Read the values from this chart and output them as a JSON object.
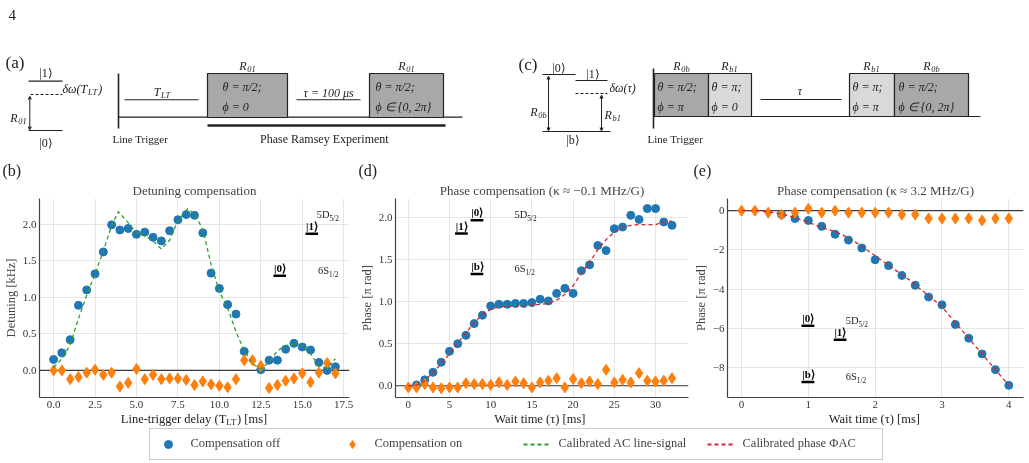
{
  "chart_data": [
    {
      "type": "other",
      "annotations": [
        "4",
        "(a)",
        "|1⟩",
        "δω(T$_{LT}$)",
        "R$_{01}$",
        "|0⟩",
        "T$_{LT}$",
        "Line Trigger",
        "R$_{01}$",
        "θ = π/2;",
        "ϕ = 0",
        "τ = 100 μs",
        "R$_{01}$",
        "θ = π/2;",
        "ϕ ∈ {0, 2π}",
        "Phase Ramsey Experiment",
        "(c)",
        "|0⟩",
        "|1⟩",
        "δω(τ)",
        "R$_{0b}$",
        "R$_{b1}$",
        "|b⟩",
        "R$_{0b}$",
        "R$_{b1}$",
        "θ = π/2;",
        "ϕ = π",
        "θ = π;",
        "ϕ = 0",
        "τ",
        "R$_{b1}$",
        "R$_{0b}$",
        "θ = π;",
        "ϕ = π",
        "θ = π/2;",
        "ϕ ∈ {0, 2π}",
        "Line Trigger"
      ]
    },
    {
      "type": "scatter",
      "title": "Detuning compensation",
      "xlabel": "Line-trigger delay (T$_{LT}$) [ms]",
      "ylabel": "Detuning [kHz]",
      "annotations": [
        "(b)",
        "5D$_{5/2}$",
        "|1⟩",
        "|0⟩",
        "6S$_{1/2}$"
      ],
      "xlim": [
        -0.85,
        17.85
      ],
      "ylim": [
        -0.37,
        2.35
      ],
      "xticks": [
        {
          "value": 0,
          "label": "0.0"
        },
        2.5,
        {
          "value": 5,
          "label": "5.0"
        },
        7.5,
        {
          "value": 10,
          "label": "10.0"
        },
        12.5,
        {
          "value": 15,
          "label": "15.0"
        },
        17.5
      ],
      "yticks": [
        {
          "value": 0,
          "label": "0.0"
        },
        0.5,
        {
          "value": 1,
          "label": "1.0"
        },
        1.5,
        {
          "value": 2,
          "label": "2.0"
        }
      ],
      "grid": true,
      "legend": "bottom",
      "ref_lines": [
        {
          "axis": "y",
          "value": 0,
          "color": "#3a3a3a"
        }
      ],
      "x": [
        0,
        0.5,
        1,
        1.5,
        2,
        2.5,
        3,
        3.5,
        4,
        4.5,
        5,
        5.5,
        6,
        6.5,
        7,
        7.5,
        8,
        8.5,
        9,
        9.5,
        10,
        10.5,
        11,
        11.5,
        12,
        12.5,
        13,
        13.5,
        14,
        14.5,
        15,
        15.5,
        16,
        16.5,
        17
      ],
      "series": [
        {
          "name": "Compensation off",
          "color": "#1f77b4",
          "marker": "circle",
          "values": [
            0.15,
            0.24,
            0.42,
            0.89,
            1.1,
            1.32,
            1.62,
            1.99,
            1.92,
            1.94,
            1.86,
            1.89,
            1.82,
            1.77,
            1.91,
            2.06,
            2.13,
            2.12,
            1.88,
            1.33,
            1.12,
            0.9,
            0.77,
            0.26,
            null,
            0.01,
            0.14,
            0.14,
            0.29,
            0.37,
            0.32,
            0.28,
            0.11,
            0.0,
            0.05
          ]
        },
        {
          "name": "Compensation on",
          "color": "#ff7f0e",
          "marker": "diamond",
          "values": [
            0.0,
            0.0,
            -0.12,
            -0.09,
            -0.03,
            0.01,
            -0.06,
            -0.03,
            -0.22,
            -0.17,
            0.02,
            -0.12,
            -0.06,
            -0.12,
            -0.11,
            -0.11,
            -0.13,
            -0.2,
            -0.15,
            -0.19,
            -0.21,
            -0.23,
            -0.12,
            0.14,
            0.14,
            0.06,
            -0.24,
            -0.2,
            -0.14,
            -0.11,
            -0.04,
            -0.16,
            -0.03,
            0.1,
            -0.04
          ]
        },
        {
          "name": "Calibrated AC line-signal",
          "type": "line",
          "color": "#2ca02c",
          "line_style": "dashed",
          "x": [
            0,
            0.5,
            1,
            1.5,
            2,
            2.5,
            3,
            3.5,
            3.9,
            4.5,
            5,
            5.5,
            6,
            6.5,
            7,
            7.5,
            8.1,
            8.5,
            9,
            9.5,
            10,
            10.5,
            11,
            11.5,
            12,
            12.5,
            13,
            13.5,
            14,
            14.5,
            15,
            15.5,
            16,
            16.5,
            17
          ],
          "values": [
            0.04,
            0.16,
            0.35,
            0.71,
            1.03,
            1.32,
            1.63,
            1.98,
            2.17,
            2.02,
            1.88,
            1.84,
            1.77,
            1.66,
            1.78,
            2.05,
            2.21,
            2.14,
            1.93,
            1.45,
            1.08,
            0.85,
            0.53,
            0.27,
            0.09,
            0.02,
            0.11,
            0.27,
            0.34,
            0.36,
            0.33,
            0.23,
            0.06,
            0.03,
            0.16
          ]
        }
      ]
    },
    {
      "type": "scatter",
      "title": "Phase compensation (κ ≈ −0.1 MHz/G)",
      "xlabel": "Wait time (τ) [ms]",
      "ylabel": "Phase [π rad]",
      "annotations": [
        "(d)",
        "|0⟩",
        "5D$_{5/2}$",
        "|1⟩",
        "|b⟩",
        "6S$_{1/2}$"
      ],
      "xlim": [
        -1.55,
        34.0
      ],
      "ylim": [
        -0.14,
        2.23
      ],
      "xticks": [
        0,
        5,
        10,
        15,
        20,
        25,
        30
      ],
      "yticks": [
        {
          "value": 0,
          "label": "0.0"
        },
        0.5,
        {
          "value": 1,
          "label": "1.0"
        },
        1.5,
        {
          "value": 2,
          "label": "2.0"
        }
      ],
      "grid": true,
      "legend": "bottom",
      "ref_lines": [
        {
          "axis": "y",
          "value": 0,
          "color": "#3a3a3a"
        }
      ],
      "x": [
        0,
        1,
        2,
        3,
        4,
        5,
        6,
        7,
        8,
        9,
        10,
        11,
        12,
        13,
        14,
        15,
        16,
        17,
        18,
        19,
        20,
        21,
        22,
        23,
        24,
        25,
        26,
        27,
        28,
        29,
        30,
        31,
        32
      ],
      "series": [
        {
          "color": "#1f77b4",
          "marker": "circle",
          "values": [
            null,
            0.01,
            0.07,
            0.16,
            0.28,
            0.41,
            0.5,
            0.6,
            0.74,
            0.84,
            0.95,
            0.97,
            0.97,
            0.98,
            0.98,
            0.99,
            1.03,
            1.01,
            1.1,
            1.16,
            1.1,
            1.37,
            1.44,
            1.67,
            1.61,
            1.87,
            1.89,
            2.03,
            1.98,
            2.11,
            2.11,
            1.95,
            1.91
          ]
        },
        {
          "color": "#ff7f0e",
          "marker": "diamond",
          "values": [
            -0.02,
            -0.02,
            0.02,
            -0.02,
            -0.03,
            -0.02,
            -0.02,
            0.03,
            0.02,
            0.02,
            0.01,
            0.04,
            0.01,
            0.05,
            0.03,
            -0.02,
            0.04,
            0.06,
            0.09,
            -0.02,
            0.08,
            0.03,
            0.05,
            0.02,
            0.19,
            0.04,
            0.07,
            0.04,
            0.15,
            0.06,
            0.05,
            0.06,
            0.09
          ]
        },
        {
          "name": "Calibrated phase ΦAC",
          "type": "line",
          "color": "#d62728",
          "line_style": "dashed",
          "x": [
            0,
            1,
            2,
            3,
            4,
            5,
            6,
            7,
            8,
            9,
            10,
            11,
            13,
            15,
            17,
            18,
            19,
            20,
            21,
            22,
            23,
            24,
            25,
            26,
            27,
            28,
            30,
            31,
            32
          ],
          "values": [
            0.0,
            0.01,
            0.06,
            0.16,
            0.26,
            0.38,
            0.51,
            0.63,
            0.75,
            0.85,
            0.91,
            0.94,
            0.95,
            0.96,
            0.98,
            1.02,
            1.09,
            1.19,
            1.34,
            1.47,
            1.62,
            1.74,
            1.83,
            1.89,
            1.91,
            1.92,
            1.92,
            1.95,
            1.96
          ]
        }
      ]
    },
    {
      "type": "scatter",
      "title": "Phase compensation (κ ≈ 3.2 MHz/G)",
      "xlabel": "Wait time (τ) [ms]",
      "ylabel": "Phase [π rad]",
      "annotations": [
        "(e)",
        "|0⟩",
        "5D$_{5/2}$",
        "|1⟩",
        "|b⟩",
        "6S$_{1/2}$"
      ],
      "xlim": [
        -0.21,
        4.22
      ],
      "ylim": [
        -9.52,
        0.62
      ],
      "xticks": [
        0,
        1,
        2,
        3,
        4
      ],
      "yticks": [
        {
          "value": -8,
          "label": "−8"
        },
        {
          "value": -6,
          "label": "−6"
        },
        {
          "value": -4,
          "label": "−4"
        },
        {
          "value": -2,
          "label": "−2"
        },
        0
      ],
      "grid": true,
      "ref_lines": [
        {
          "axis": "y",
          "value": 0,
          "color": "#3a3a3a"
        }
      ],
      "x": [
        0,
        0.2,
        0.4,
        0.6,
        0.8,
        1.0,
        1.2,
        1.4,
        1.6,
        1.8,
        2.0,
        2.2,
        2.4,
        2.6,
        2.8,
        3.0,
        3.2,
        3.4,
        3.6,
        3.8,
        4.0
      ],
      "series": [
        {
          "color": "#1f77b4",
          "marker": "circle",
          "values": [
            null,
            null,
            null,
            -0.2,
            -0.4,
            -0.5,
            -0.8,
            -1.2,
            -1.5,
            -1.9,
            -2.5,
            -2.8,
            -3.3,
            -3.8,
            -4.4,
            -4.8,
            -5.8,
            -6.5,
            -7.3,
            -8.1,
            -8.9
          ]
        },
        {
          "color": "#ff7f0e",
          "marker": "diamond",
          "values": [
            0.0,
            0.0,
            -0.1,
            -0.2,
            -0.1,
            0.1,
            -0.1,
            0.0,
            -0.1,
            -0.1,
            -0.1,
            -0.1,
            -0.2,
            -0.2,
            -0.4,
            -0.4,
            -0.4,
            -0.4,
            -0.5,
            -0.4,
            -0.4
          ]
        },
        {
          "type": "line",
          "color": "#d62728",
          "line_style": "dashed",
          "x": [
            0,
            0.25,
            0.5,
            0.75,
            1.0,
            1.25,
            1.5,
            1.75,
            2.0,
            2.25,
            2.5,
            2.75,
            3.0,
            3.25,
            3.5,
            3.75,
            4.0
          ],
          "values": [
            0.0,
            0.0,
            -0.1,
            -0.3,
            -0.6,
            -0.9,
            -1.2,
            -1.7,
            -2.3,
            -2.9,
            -3.5,
            -4.2,
            -4.9,
            -5.9,
            -6.9,
            -7.9,
            -8.9
          ]
        }
      ]
    }
  ]
}
